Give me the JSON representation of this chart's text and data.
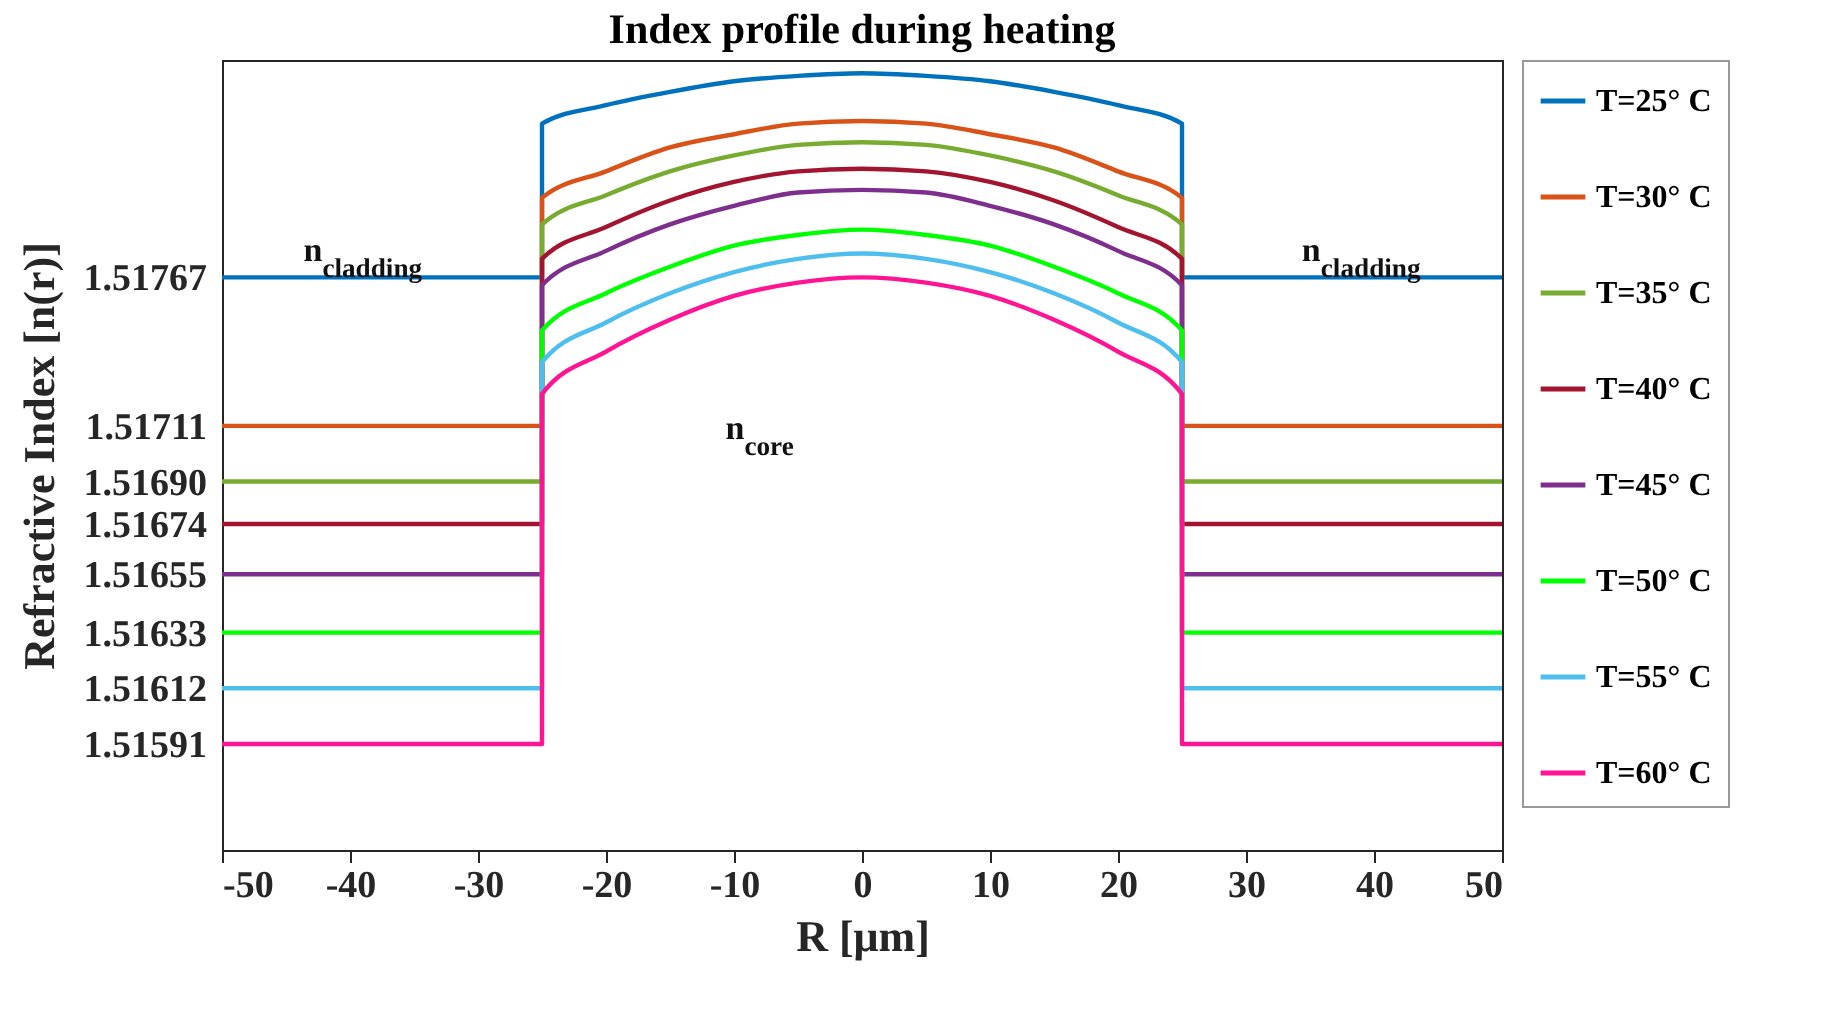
{
  "chart_data": {
    "type": "line",
    "title": "Index profile during heating",
    "xlabel": "R [μm]",
    "ylabel": "Refractive Index [n(r)]",
    "x": [
      -50,
      -25,
      -25,
      -20,
      -15,
      -10,
      -5,
      0,
      5,
      10,
      15,
      20,
      25,
      25,
      50
    ],
    "series": [
      {
        "name": "T=25° C",
        "color": "#0072bd",
        "values": [
          1.51767,
          1.51767,
          1.51825,
          1.51832,
          1.51837,
          1.51841,
          1.51843,
          1.51844,
          1.51843,
          1.51841,
          1.51837,
          1.51832,
          1.51825,
          1.51767,
          1.51767
        ]
      },
      {
        "name": "T=30° C",
        "color": "#d95319",
        "values": [
          1.51711,
          1.51711,
          1.51797,
          1.51807,
          1.51816,
          1.51821,
          1.51825,
          1.51826,
          1.51825,
          1.51821,
          1.51816,
          1.51807,
          1.51797,
          1.51711,
          1.51711
        ]
      },
      {
        "name": "T=35° C",
        "color": "#77ac30",
        "values": [
          1.5169,
          1.5169,
          1.51787,
          1.51798,
          1.51807,
          1.51813,
          1.51817,
          1.51818,
          1.51817,
          1.51813,
          1.51807,
          1.51798,
          1.51787,
          1.5169,
          1.5169
        ]
      },
      {
        "name": "T=40° C",
        "color": "#a2142f",
        "values": [
          1.51674,
          1.51674,
          1.51774,
          1.51786,
          1.51796,
          1.51803,
          1.51807,
          1.51808,
          1.51807,
          1.51803,
          1.51796,
          1.51786,
          1.51774,
          1.51674,
          1.51674
        ]
      },
      {
        "name": "T=45° C",
        "color": "#7e2f8e",
        "values": [
          1.51655,
          1.51655,
          1.51764,
          1.51777,
          1.51787,
          1.51794,
          1.51799,
          1.518,
          1.51799,
          1.51794,
          1.51787,
          1.51777,
          1.51764,
          1.51655,
          1.51655
        ]
      },
      {
        "name": "T=50° C",
        "color": "#00ff00",
        "values": [
          1.51633,
          1.51633,
          1.51747,
          1.51761,
          1.51771,
          1.51779,
          1.51783,
          1.51785,
          1.51783,
          1.51779,
          1.51771,
          1.51761,
          1.51747,
          1.51633,
          1.51633
        ]
      },
      {
        "name": "T=55° C",
        "color": "#4dbeee",
        "values": [
          1.51612,
          1.51612,
          1.51735,
          1.5175,
          1.51761,
          1.51769,
          1.51774,
          1.51776,
          1.51774,
          1.51769,
          1.51761,
          1.5175,
          1.51735,
          1.51612,
          1.51612
        ]
      },
      {
        "name": "T=60° C",
        "color": "#ff1493",
        "values": [
          1.51591,
          1.51591,
          1.51723,
          1.51739,
          1.51751,
          1.5176,
          1.51765,
          1.51767,
          1.51765,
          1.5176,
          1.51751,
          1.51739,
          1.51723,
          1.51591,
          1.51591
        ]
      }
    ],
    "xlim": [
      -50,
      50
    ],
    "xticks": [
      -50,
      -40,
      -30,
      -20,
      -10,
      0,
      10,
      20,
      30,
      40,
      50
    ],
    "ylim": [
      1.51551,
      1.51849
    ],
    "yticks": [
      {
        "value": 1.51591,
        "label": "1.51591"
      },
      {
        "value": 1.51612,
        "label": "1.51612"
      },
      {
        "value": 1.51633,
        "label": "1.51633"
      },
      {
        "value": 1.51655,
        "label": "1.51655"
      },
      {
        "value": 1.51674,
        "label": "1.51674"
      },
      {
        "value": 1.5169,
        "label": "1.51690"
      },
      {
        "value": 1.51711,
        "label": "1.51711"
      },
      {
        "value": 1.51767,
        "label": "1.51767"
      }
    ],
    "annotations": [
      {
        "text": "n$_{cladding}$",
        "x": -39,
        "y": 1.51767
      },
      {
        "text": "n$_{cladding}$",
        "x": 39,
        "y": 1.51767
      },
      "n$_{core}$"
    ],
    "grid": false,
    "legend": "right",
    "line_style": "solid",
    "marker": "none"
  }
}
